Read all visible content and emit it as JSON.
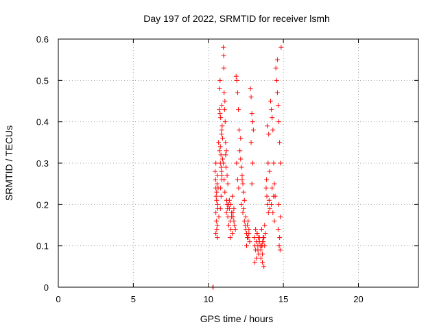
{
  "chart_data": {
    "type": "scatter",
    "title": "Day 197 of 2022, SRMTID for receiver lsmh",
    "xlabel": "GPS time / hours",
    "ylabel": "SRMTID / TECUs",
    "xlim": [
      0,
      24
    ],
    "ylim": [
      0,
      0.6
    ],
    "xticks": [
      0,
      5,
      10,
      15,
      20
    ],
    "xtick_labels": [
      "0",
      "5",
      "10",
      "15",
      "20"
    ],
    "yticks": [
      0,
      0.1,
      0.2,
      0.3,
      0.4,
      0.5,
      0.6
    ],
    "ytick_labels": [
      "0",
      "0.1",
      "0.2",
      "0.3",
      "0.4",
      "0.5",
      "0.6"
    ],
    "grid": true,
    "marker": "+",
    "color": "#ff0000",
    "series": [
      {
        "name": "SRMTID",
        "x": [
          10.3,
          10.32,
          10.45,
          10.48,
          10.5,
          10.52,
          10.55,
          10.5,
          10.53,
          10.56,
          10.6,
          10.62,
          10.58,
          10.65,
          10.5,
          10.6,
          10.55,
          10.62,
          10.5,
          10.6,
          10.7,
          10.68,
          10.72,
          10.75,
          10.8,
          10.85,
          10.9,
          10.78,
          10.82,
          10.9,
          10.95,
          10.85,
          10.8,
          10.75,
          10.9,
          10.95,
          10.88,
          10.82,
          10.78,
          10.92,
          10.87,
          10.84,
          10.8,
          10.9,
          11.0,
          11.02,
          11.05,
          11.1,
          11.08,
          11.12,
          11.03,
          11.15,
          11.0,
          11.05,
          11.1,
          11.2,
          11.18,
          11.25,
          11.3,
          11.22,
          11.28,
          11.35,
          11.15,
          11.2,
          11.25,
          11.3,
          11.35,
          11.4,
          11.45,
          11.5,
          11.55,
          11.6,
          11.65,
          11.7,
          11.75,
          11.8,
          11.4,
          11.5,
          11.6,
          11.7,
          11.45,
          11.55,
          11.65,
          11.85,
          11.9,
          11.95,
          12.0,
          12.05,
          11.88,
          11.95,
          12.02,
          12.1,
          12.15,
          12.2,
          12.25,
          12.3,
          12.35,
          12.4,
          12.2,
          12.3,
          12.4,
          12.15,
          12.25,
          12.35,
          12.45,
          12.5,
          12.55,
          12.6,
          12.65,
          12.7,
          12.75,
          12.5,
          12.6,
          12.7,
          12.55,
          12.65,
          12.8,
          12.85,
          12.9,
          12.95,
          13.0,
          12.85,
          12.95,
          12.9,
          13.05,
          13.1,
          13.15,
          13.2,
          13.25,
          13.3,
          13.35,
          13.4,
          13.1,
          13.2,
          13.3,
          13.4,
          13.15,
          13.25,
          13.35,
          13.45,
          13.5,
          13.55,
          13.6,
          13.65,
          13.7,
          13.75,
          13.8,
          13.5,
          13.6,
          13.7,
          13.55,
          13.65,
          13.75,
          13.62,
          13.58,
          13.85,
          13.9,
          13.95,
          14.0,
          14.05,
          14.1,
          13.88,
          13.98,
          14.08,
          13.92,
          14.02,
          14.15,
          14.2,
          14.25,
          14.3,
          14.35,
          14.4,
          14.45,
          14.2,
          14.3,
          14.4,
          14.25,
          14.35,
          14.5,
          14.55,
          14.6,
          14.65,
          14.7,
          14.75,
          14.8,
          14.85,
          14.6,
          14.7,
          14.8,
          14.65,
          14.75,
          14.72,
          14.78
        ],
        "y": [
          0.0,
          0.0,
          0.28,
          0.26,
          0.24,
          0.22,
          0.23,
          0.18,
          0.16,
          0.14,
          0.12,
          0.2,
          0.25,
          0.24,
          0.3,
          0.27,
          0.21,
          0.19,
          0.13,
          0.15,
          0.17,
          0.35,
          0.43,
          0.33,
          0.34,
          0.29,
          0.26,
          0.42,
          0.41,
          0.38,
          0.36,
          0.22,
          0.19,
          0.48,
          0.44,
          0.31,
          0.28,
          0.24,
          0.5,
          0.39,
          0.37,
          0.32,
          0.3,
          0.27,
          0.58,
          0.56,
          0.47,
          0.45,
          0.43,
          0.4,
          0.53,
          0.35,
          0.3,
          0.26,
          0.23,
          0.33,
          0.29,
          0.27,
          0.25,
          0.21,
          0.19,
          0.2,
          0.32,
          0.18,
          0.2,
          0.17,
          0.15,
          0.19,
          0.16,
          0.14,
          0.18,
          0.13,
          0.17,
          0.16,
          0.15,
          0.14,
          0.21,
          0.2,
          0.22,
          0.19,
          0.12,
          0.17,
          0.18,
          0.51,
          0.5,
          0.47,
          0.43,
          0.38,
          0.3,
          0.26,
          0.24,
          0.33,
          0.31,
          0.29,
          0.27,
          0.25,
          0.23,
          0.21,
          0.2,
          0.18,
          0.16,
          0.36,
          0.26,
          0.19,
          0.15,
          0.14,
          0.13,
          0.12,
          0.16,
          0.14,
          0.11,
          0.17,
          0.15,
          0.13,
          0.1,
          0.12,
          0.48,
          0.46,
          0.42,
          0.4,
          0.38,
          0.35,
          0.3,
          0.25,
          0.12,
          0.1,
          0.09,
          0.11,
          0.13,
          0.1,
          0.08,
          0.12,
          0.06,
          0.07,
          0.09,
          0.11,
          0.14,
          0.13,
          0.12,
          0.1,
          0.09,
          0.1,
          0.08,
          0.11,
          0.12,
          0.1,
          0.13,
          0.07,
          0.06,
          0.05,
          0.14,
          0.12,
          0.15,
          0.11,
          0.1,
          0.24,
          0.22,
          0.2,
          0.18,
          0.21,
          0.19,
          0.26,
          0.3,
          0.28,
          0.39,
          0.37,
          0.45,
          0.43,
          0.41,
          0.38,
          0.3,
          0.25,
          0.22,
          0.2,
          0.18,
          0.16,
          0.24,
          0.22,
          0.53,
          0.5,
          0.47,
          0.44,
          0.4,
          0.35,
          0.3,
          0.58,
          0.55,
          0.2,
          0.17,
          0.14,
          0.12,
          0.1,
          0.09
        ]
      }
    ]
  }
}
